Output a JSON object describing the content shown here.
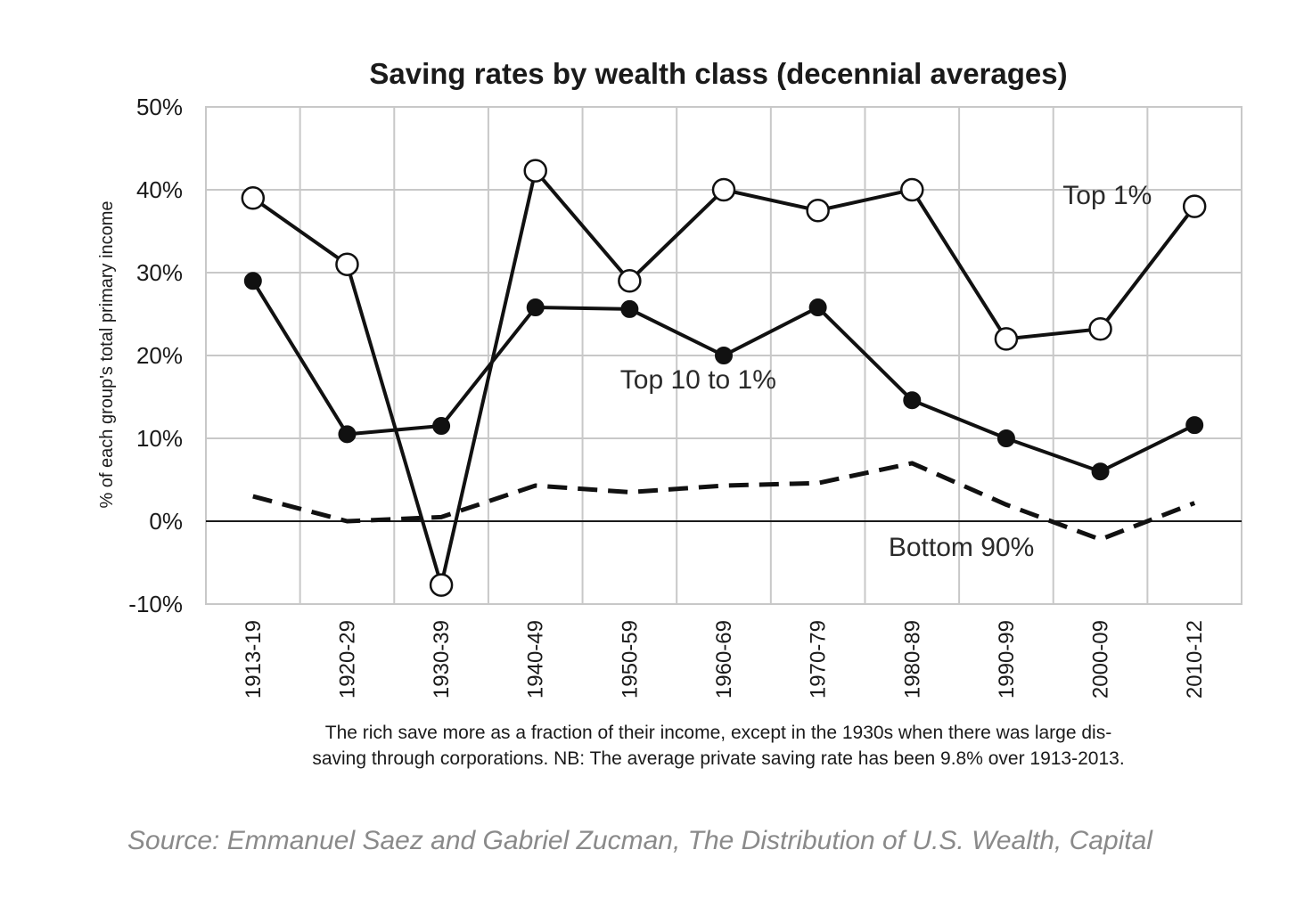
{
  "chart_data": {
    "type": "line",
    "title": "Saving rates by wealth class (decennial averages)",
    "ylabel": "% of each group's total primary income",
    "xlabel": "",
    "categories": [
      "1913-19",
      "1920-29",
      "1930-39",
      "1940-49",
      "1950-59",
      "1960-69",
      "1970-79",
      "1980-89",
      "1990-99",
      "2000-09",
      "2010-12"
    ],
    "ylim": [
      -10,
      50
    ],
    "yticks": [
      50,
      40,
      30,
      20,
      10,
      0,
      -10
    ],
    "ytick_labels": [
      "50%",
      "40%",
      "30%",
      "20%",
      "10%",
      "0%",
      "-10%"
    ],
    "grid": true,
    "series": [
      {
        "name": "Top 1%",
        "marker": "open-circle",
        "line": "solid",
        "values": [
          39,
          31,
          -7.7,
          42.3,
          29,
          40,
          37.5,
          40,
          22,
          23.2,
          38
        ]
      },
      {
        "name": "Top 10 to 1%",
        "marker": "filled-circle",
        "line": "solid",
        "values": [
          29,
          10.5,
          11.5,
          25.8,
          25.6,
          20,
          25.8,
          14.6,
          10,
          6,
          11.6
        ]
      },
      {
        "name": "Bottom 90%",
        "marker": "none",
        "line": "dashed",
        "values": [
          3,
          0,
          0.5,
          4.3,
          3.5,
          4.3,
          4.6,
          7,
          2,
          -2.2,
          2.2
        ]
      }
    ],
    "caption_lines": [
      "The rich save more as a fraction of their income, except in the 1930s when there was large dis-",
      "saving through corporations. NB: The average private saving rate has been 9.8% over 1913-2013."
    ],
    "source": "Source: Emmanuel Saez and Gabriel Zucman, The Distribution of U.S. Wealth, Capital"
  }
}
